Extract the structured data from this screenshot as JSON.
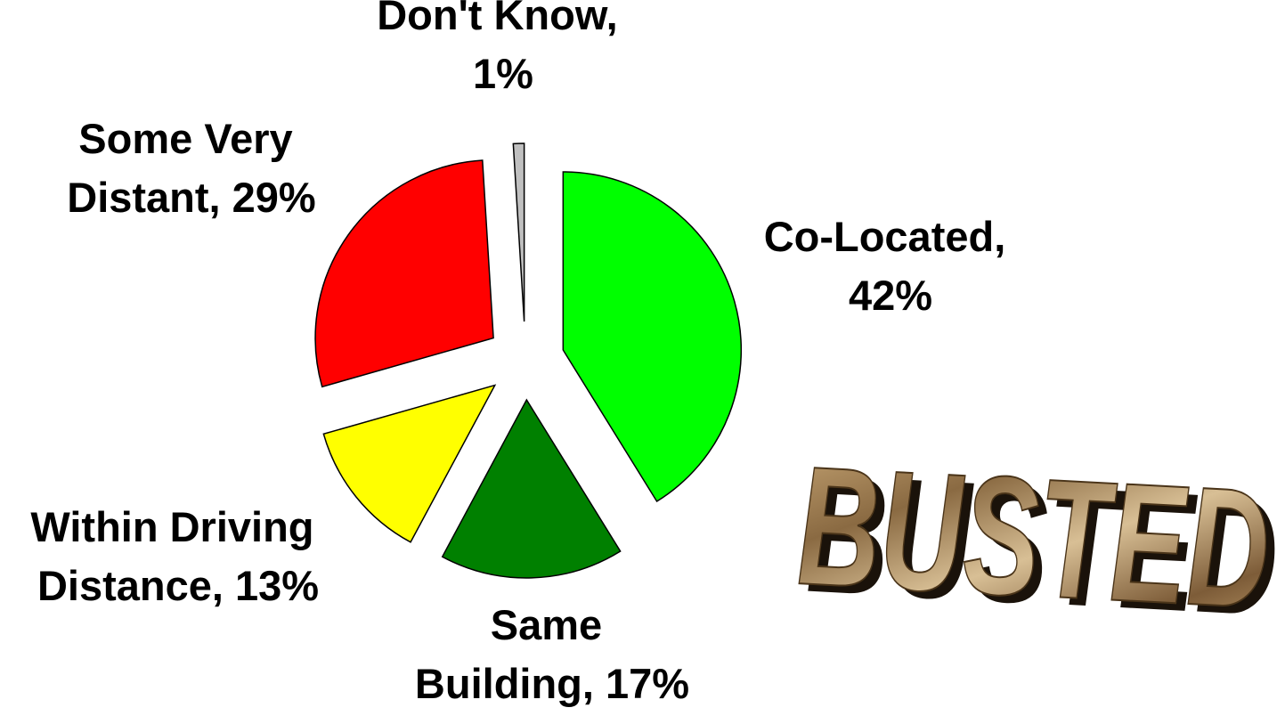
{
  "chart_data": {
    "type": "pie",
    "values": [
      42,
      17,
      13,
      29,
      1
    ],
    "value_labels": [
      "Co-Located, 42%",
      "Same Building, 17%",
      "Within Driving Distance, 13%",
      "Some Very Distant, 29%",
      "Don't Know, 1%"
    ],
    "colors": [
      "#00ff00",
      "#008000",
      "#ffff00",
      "#ff0000",
      "#c0c0c0"
    ],
    "annotation": "BUSTED"
  }
}
